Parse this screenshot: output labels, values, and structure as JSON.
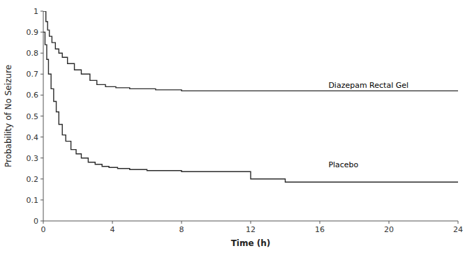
{
  "chart_data": {
    "type": "step",
    "xlabel": "Time (h)",
    "ylabel": "Probability of No Seizure",
    "xlim": [
      0,
      24
    ],
    "ylim": [
      0,
      1.0
    ],
    "xticks": [
      0,
      4,
      8,
      12,
      16,
      20,
      24
    ],
    "yticks": [
      0,
      0.1,
      0.2,
      0.3,
      0.4,
      0.5,
      0.6,
      0.7,
      0.8,
      0.9,
      1
    ],
    "grid": false,
    "series": [
      {
        "color": "#2b2b2b",
        "x": [
          0,
          0.15,
          0.25,
          0.35,
          0.5,
          0.7,
          0.9,
          1.1,
          1.4,
          1.8,
          2.2,
          2.7,
          3.1,
          3.6,
          4.2,
          5.0,
          6.5,
          8.0,
          24.0
        ],
        "values": [
          1.0,
          0.95,
          0.91,
          0.88,
          0.85,
          0.82,
          0.8,
          0.78,
          0.75,
          0.72,
          0.7,
          0.67,
          0.65,
          0.64,
          0.635,
          0.63,
          0.625,
          0.62,
          0.62
        ]
      },
      {
        "color": "#2b2b2b",
        "x": [
          0,
          0.1,
          0.2,
          0.3,
          0.45,
          0.6,
          0.75,
          0.9,
          1.1,
          1.3,
          1.6,
          1.9,
          2.2,
          2.6,
          3.0,
          3.4,
          3.8,
          4.3,
          5.0,
          6.0,
          8.0,
          12.0,
          14.0,
          24.0
        ],
        "values": [
          0.9,
          0.84,
          0.77,
          0.7,
          0.63,
          0.57,
          0.52,
          0.46,
          0.41,
          0.38,
          0.34,
          0.32,
          0.3,
          0.28,
          0.27,
          0.26,
          0.255,
          0.25,
          0.245,
          0.24,
          0.235,
          0.2,
          0.185,
          0.185
        ]
      }
    ],
    "annotations": [
      {
        "text": "Diazepam Rectal Gel",
        "x": 16.5,
        "y": 0.645
      },
      {
        "text": "Placebo",
        "x": 16.5,
        "y": 0.265
      }
    ]
  }
}
